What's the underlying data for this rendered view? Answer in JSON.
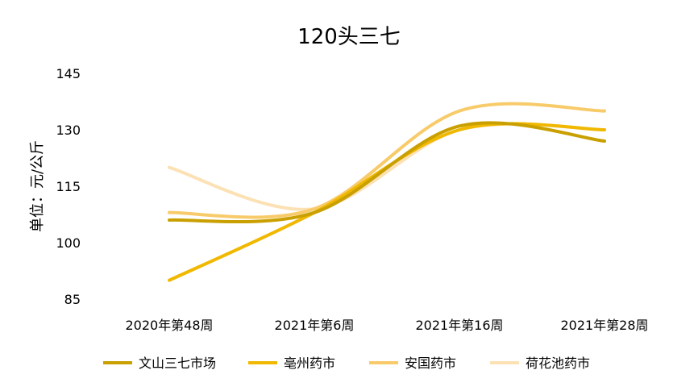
{
  "chart_data": {
    "type": "line",
    "title": "120头三七",
    "ylabel": "单位：元/公斤",
    "xlabel": "",
    "categories": [
      "2020年第48周",
      "2021年第6周",
      "2021年第16周",
      "2021年第28周"
    ],
    "ylim": [
      85,
      145
    ],
    "yticks": [
      "145",
      "130",
      "115",
      "100",
      "85"
    ],
    "smooth": true,
    "grid": false,
    "legend": "bottom",
    "series": [
      {
        "name": "文山三七市场",
        "color": "#C9A000",
        "values": [
          106,
          108,
          131,
          127
        ]
      },
      {
        "name": "亳州药市",
        "color": "#F0B800",
        "values": [
          90,
          108,
          130,
          130
        ]
      },
      {
        "name": "安国药市",
        "color": "#F8CB6A",
        "values": [
          108,
          109,
          135,
          135
        ]
      },
      {
        "name": "荷花池药市",
        "color": "#FCE1B4",
        "values": [
          120,
          109,
          130,
          130
        ]
      }
    ]
  }
}
